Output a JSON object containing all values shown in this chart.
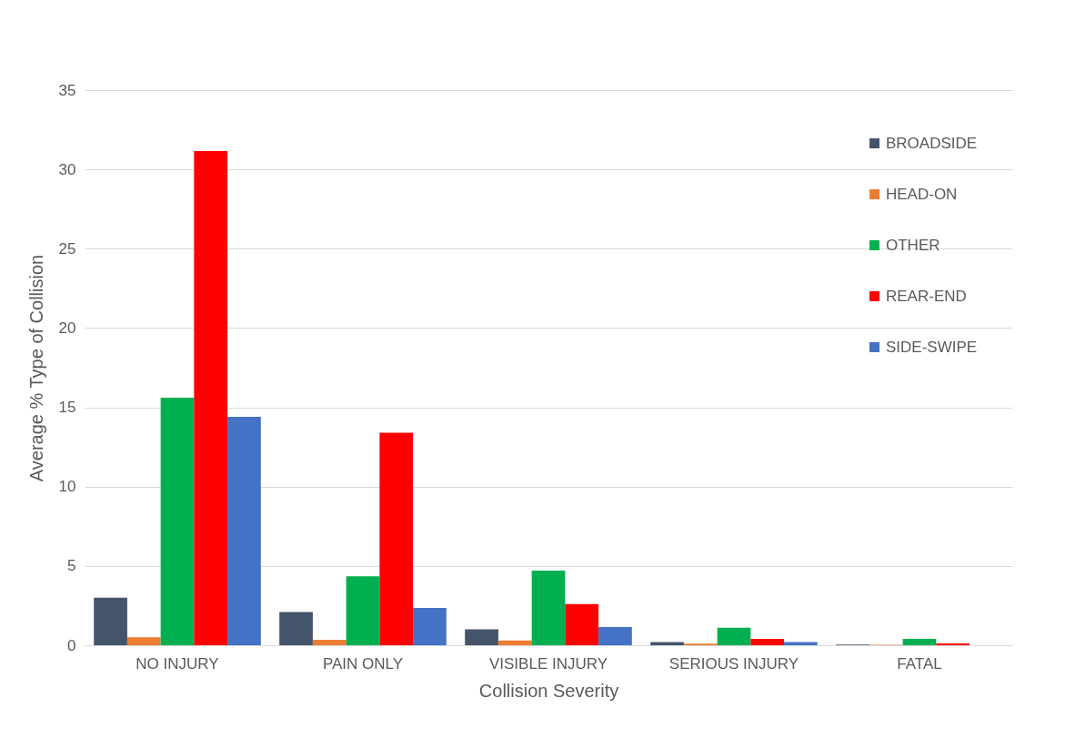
{
  "chart_data": {
    "type": "bar",
    "xlabel": "Collision Severity",
    "ylabel": "Average % Type of Collision",
    "categories": [
      "NO INJURY",
      "PAIN ONLY",
      "VISIBLE INJURY",
      "SERIOUS INJURY",
      "FATAL"
    ],
    "series": [
      {
        "name": "BROADSIDE",
        "color": "#44546a",
        "values": [
          3.0,
          2.1,
          1.0,
          0.2,
          0.05
        ]
      },
      {
        "name": "HEAD-ON",
        "color": "#ed7d31",
        "values": [
          0.5,
          0.35,
          0.3,
          0.1,
          0.03
        ]
      },
      {
        "name": "OTHER",
        "color": "#00b050",
        "values": [
          15.6,
          4.35,
          4.7,
          1.1,
          0.4
        ]
      },
      {
        "name": "REAR-END",
        "color": "#ff0000",
        "values": [
          31.15,
          13.4,
          2.6,
          0.4,
          0.12
        ]
      },
      {
        "name": "SIDE-SWIPE",
        "color": "#4472c4",
        "values": [
          14.4,
          2.35,
          1.15,
          0.2,
          0
        ]
      }
    ],
    "ylim": [
      0,
      35
    ],
    "yticks": [
      0,
      5,
      10,
      15,
      20,
      25,
      30,
      35
    ],
    "grid": "y",
    "legend": "top right"
  }
}
